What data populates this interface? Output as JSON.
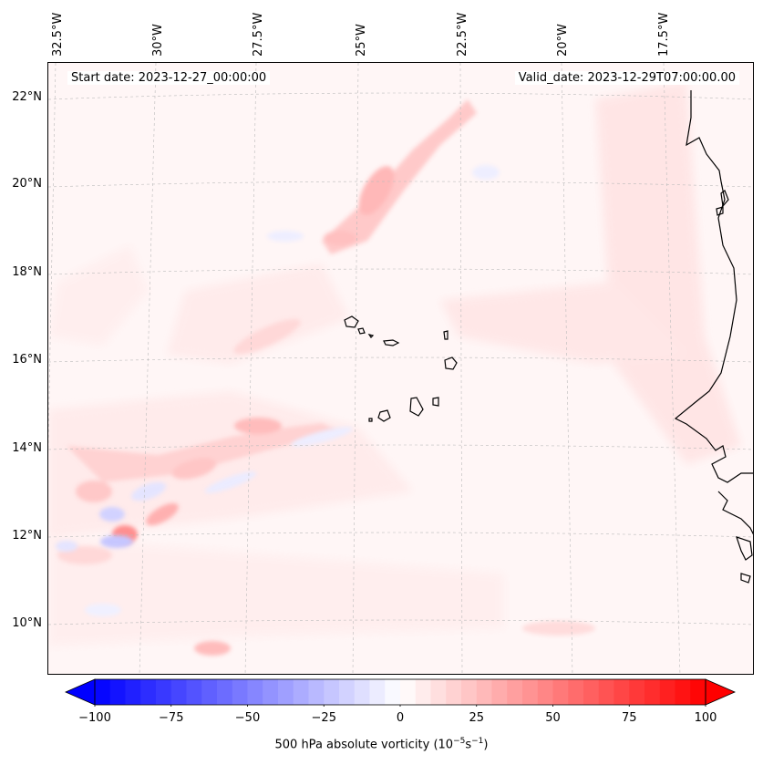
{
  "map": {
    "header_left": "Start date: 2023-12-27_00:00:00",
    "header_right": "Valid_date: 2023-12-29T07:00:00.00",
    "lon_labels": [
      "32.5°W",
      "30°W",
      "27.5°W",
      "25°W",
      "22.5°W",
      "20°W",
      "17.5°W"
    ],
    "lat_labels": [
      "22°N",
      "20°N",
      "18°N",
      "16°N",
      "14°N",
      "12°N",
      "10°N"
    ],
    "field_name": "500 hPa absolute vorticity",
    "units_text": "(10",
    "units_exp1": "−5",
    "units_mid": "s",
    "units_exp2": "−1",
    "units_close": ")",
    "colormap": "bwr",
    "neg_color": "#0000ff",
    "zero_color": "#ffffff",
    "pos_color": "#ff0000",
    "coastline_color": "#000000"
  },
  "colorbar": {
    "min": -100,
    "max": 100,
    "ticks": [
      "−100",
      "−75",
      "−50",
      "−25",
      "0",
      "25",
      "50",
      "75",
      "100"
    ],
    "n_levels": 40,
    "extend": "both"
  }
}
